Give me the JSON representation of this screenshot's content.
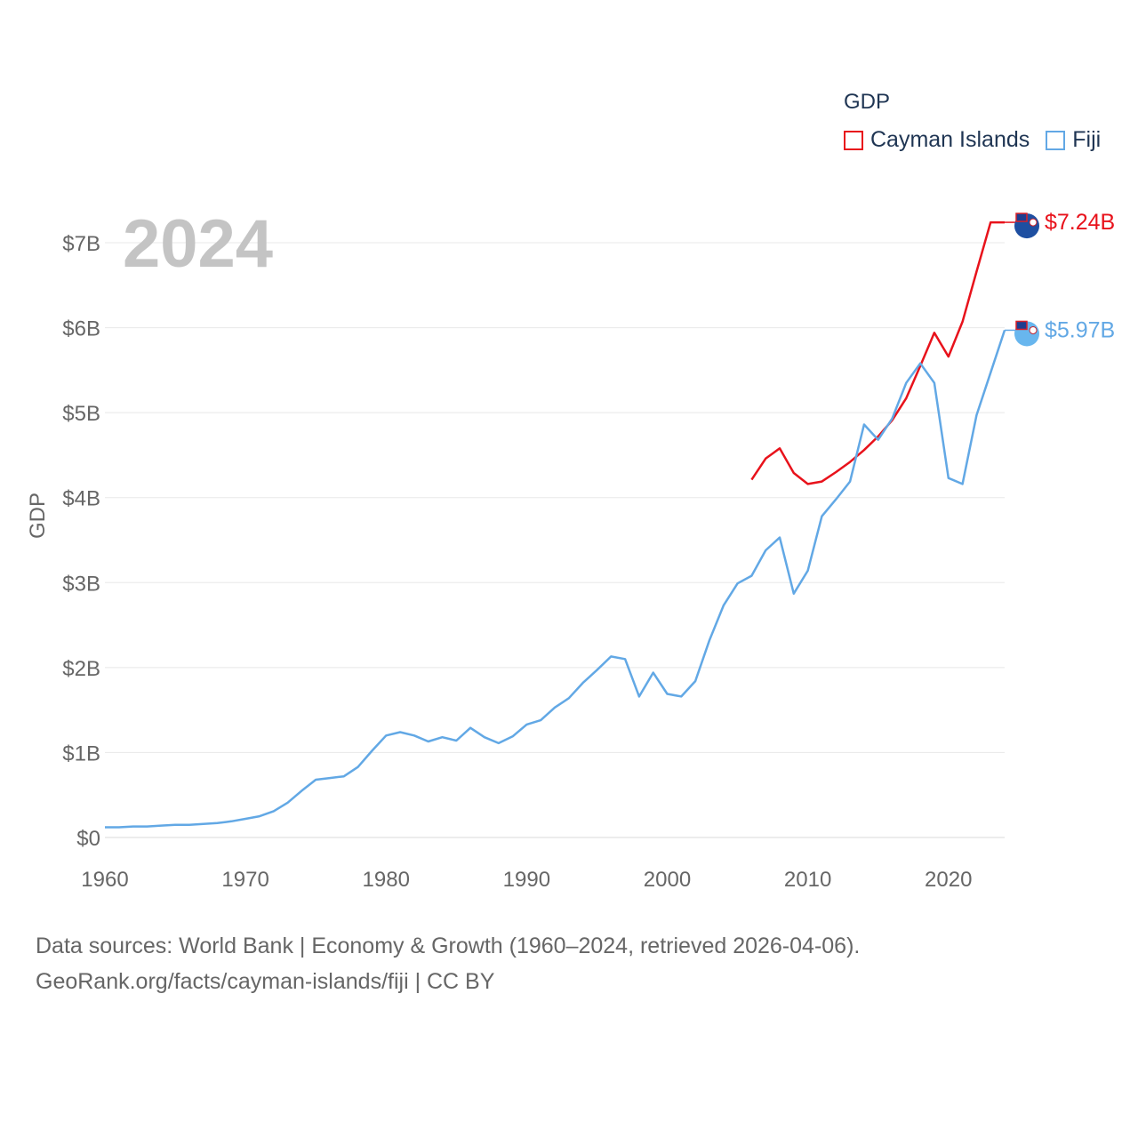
{
  "chart_data": {
    "type": "line",
    "title": "",
    "year_label": "2024",
    "legend_title": "GDP",
    "ylabel": "GDP",
    "xlabel": "",
    "xlim": [
      1960,
      2024
    ],
    "ylim": [
      0,
      7.24
    ],
    "x_ticks": [
      1960,
      1970,
      1980,
      1990,
      2000,
      2010,
      2020
    ],
    "y_ticks": [
      {
        "value": 0,
        "label": "$0"
      },
      {
        "value": 1,
        "label": "$1B"
      },
      {
        "value": 2,
        "label": "$2B"
      },
      {
        "value": 3,
        "label": "$3B"
      },
      {
        "value": 4,
        "label": "$4B"
      },
      {
        "value": 5,
        "label": "$5B"
      },
      {
        "value": 6,
        "label": "$6B"
      },
      {
        "value": 7,
        "label": "$7B"
      }
    ],
    "grid": true,
    "unit": "USD billions",
    "series": [
      {
        "name": "Cayman Islands",
        "color": "#e8121b",
        "end_label": "$7.24B",
        "flag_icon": "cayman-islands-flag-icon",
        "x": [
          2006,
          2007,
          2008,
          2009,
          2010,
          2011,
          2012,
          2013,
          2014,
          2015,
          2016,
          2017,
          2018,
          2019,
          2020,
          2021,
          2022,
          2023,
          2024
        ],
        "values": [
          4.21,
          4.46,
          4.58,
          4.29,
          4.16,
          4.19,
          4.3,
          4.42,
          4.56,
          4.72,
          4.91,
          5.17,
          5.55,
          5.94,
          5.66,
          6.07,
          6.66,
          7.24,
          7.24
        ]
      },
      {
        "name": "Fiji",
        "color": "#62a8e5",
        "end_label": "$5.97B",
        "flag_icon": "fiji-flag-icon",
        "x": [
          1960,
          1961,
          1962,
          1963,
          1964,
          1965,
          1966,
          1967,
          1968,
          1969,
          1970,
          1971,
          1972,
          1973,
          1974,
          1975,
          1976,
          1977,
          1978,
          1979,
          1980,
          1981,
          1982,
          1983,
          1984,
          1985,
          1986,
          1987,
          1988,
          1989,
          1990,
          1991,
          1992,
          1993,
          1994,
          1995,
          1996,
          1997,
          1998,
          1999,
          2000,
          2001,
          2002,
          2003,
          2004,
          2005,
          2006,
          2007,
          2008,
          2009,
          2010,
          2011,
          2012,
          2013,
          2014,
          2015,
          2016,
          2017,
          2018,
          2019,
          2020,
          2021,
          2022,
          2023,
          2024
        ],
        "values": [
          0.12,
          0.12,
          0.13,
          0.13,
          0.14,
          0.15,
          0.15,
          0.16,
          0.17,
          0.19,
          0.22,
          0.25,
          0.31,
          0.41,
          0.55,
          0.68,
          0.7,
          0.72,
          0.83,
          1.02,
          1.2,
          1.24,
          1.2,
          1.13,
          1.18,
          1.14,
          1.29,
          1.18,
          1.11,
          1.19,
          1.33,
          1.38,
          1.53,
          1.64,
          1.82,
          1.97,
          2.13,
          2.1,
          1.66,
          1.94,
          1.69,
          1.66,
          1.84,
          2.32,
          2.73,
          2.99,
          3.08,
          3.38,
          3.53,
          2.87,
          3.14,
          3.78,
          3.98,
          4.19,
          4.86,
          4.68,
          4.93,
          5.35,
          5.58,
          5.35,
          4.23,
          4.16,
          4.97,
          5.47,
          5.97
        ]
      }
    ]
  },
  "source": {
    "line1": "Data sources: World Bank | Economy & Growth (1960–2024, retrieved 2026-04-06).",
    "line2": "GeoRank.org/facts/cayman-islands/fiji | CC BY"
  }
}
